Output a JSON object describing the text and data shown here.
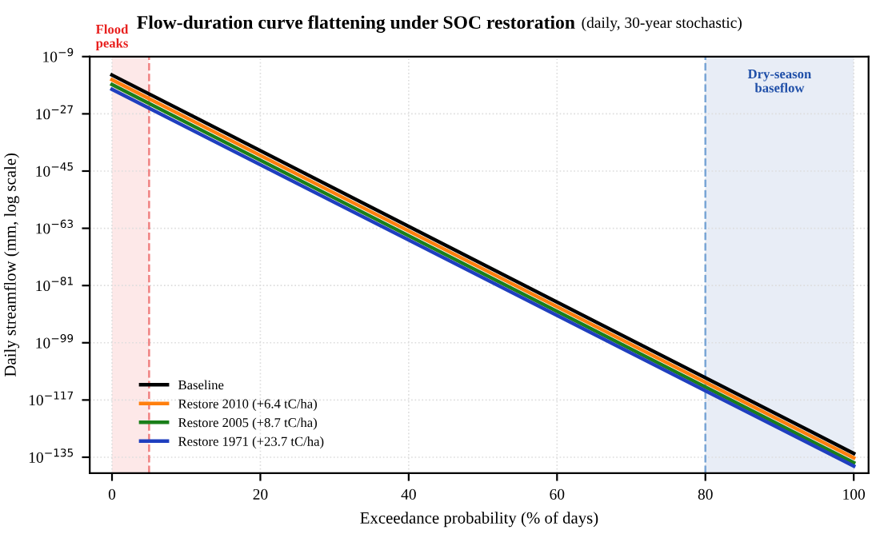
{
  "chart_data": {
    "type": "line",
    "title": "Flow-duration curve flattening under SOC restoration",
    "subtitle": "(daily, 30-year stochastic)",
    "xlabel": "Exceedance probability (% of days)",
    "ylabel": "Daily streamflow (mm, log scale)",
    "x": [
      0,
      100
    ],
    "series": [
      {
        "name": "Baseline",
        "color": "#000000",
        "values": [
          1.6e-15,
          1.6e-134
        ]
      },
      {
        "name": "Restore 2010 (+6.4 tC/ha)",
        "color": "#ff7f0e",
        "values": [
          5e-17,
          6e-136
        ]
      },
      {
        "name": "Restore 2005 (+8.7 tC/ha)",
        "color": "#1a7f1a",
        "values": [
          1.6e-18,
          2e-137
        ]
      },
      {
        "name": "Restore 1971 (+23.7 tC/ha)",
        "color": "#1f3fbf",
        "values": [
          5e-20,
          1.6e-138
        ]
      }
    ],
    "log": "y",
    "xlim": [
      -3,
      102
    ],
    "ylim": [
      1e-140,
      1e-09
    ],
    "xticks": [
      0,
      20,
      40,
      60,
      80,
      100
    ],
    "yticks": [
      {
        "value": 1e-09,
        "label": "10$^{−9}$"
      },
      {
        "value": 1e-27,
        "label": "10$^{−27}$"
      },
      {
        "value": 1e-45,
        "label": "10$^{−45}$"
      },
      {
        "value": 1e-63,
        "label": "10$^{−63}$"
      },
      {
        "value": 1e-81,
        "label": "10$^{−81}$"
      },
      {
        "value": 1e-99,
        "label": "10$^{−99}$"
      },
      {
        "value": 1e-117,
        "label": "10$^{−117}$"
      },
      {
        "value": 1e-135,
        "label": "10$^{−135}$"
      }
    ],
    "bands": [
      {
        "axis": "x",
        "from": 0,
        "to": 5,
        "label": "Flood\npeaks",
        "color": "#e8201e"
      },
      {
        "axis": "x",
        "from": 80,
        "to": 100,
        "label": "Dry-season\nbaseflow",
        "color": "#1f4fa8"
      }
    ],
    "ref_lines": [
      {
        "axis": "x",
        "value": 5,
        "color": "#f08080",
        "line_style": "dashed"
      },
      {
        "axis": "x",
        "value": 80,
        "color": "#7aa6d6",
        "line_style": "dashed"
      }
    ],
    "grid": true,
    "legend": "bottom left",
    "line_style": "solid",
    "marker": "none"
  }
}
